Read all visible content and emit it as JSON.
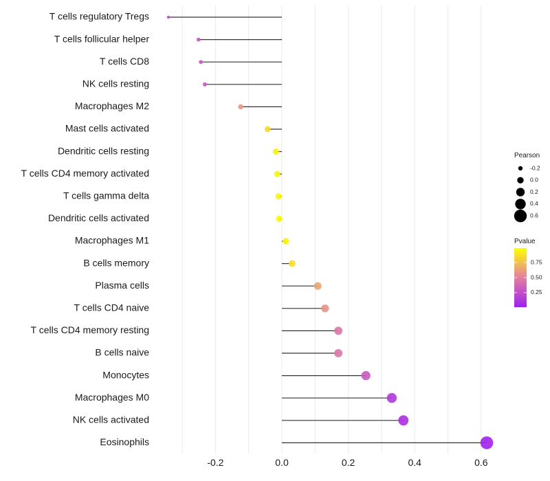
{
  "chart_data": {
    "type": "lollipop",
    "title": "",
    "xlabel": "",
    "ylabel": "",
    "xlim": [
      -0.36,
      0.64
    ],
    "x_ticks": [
      -0.2,
      0.0,
      0.2,
      0.4,
      0.6
    ],
    "x_tick_labels": [
      "-0.2",
      "0.0",
      "0.2",
      "0.4",
      "0.6"
    ],
    "grid": true,
    "categories": [
      "T cells regulatory  Tregs",
      "T cells follicular helper",
      "T cells CD8",
      "NK cells resting",
      "Macrophages M2",
      "Mast cells activated",
      "Dendritic cells resting",
      "T cells CD4 memory activated",
      "T cells gamma delta",
      "Dendritic cells activated",
      "Macrophages M1",
      "B cells memory",
      "Plasma cells",
      "T cells CD4 naive",
      "T cells CD4 memory resting",
      "B cells naive",
      "Monocytes",
      "Macrophages M0",
      "NK cells activated",
      "Eosinophils"
    ],
    "pearson": [
      -0.342,
      -0.251,
      -0.244,
      -0.232,
      -0.124,
      -0.043,
      -0.018,
      -0.014,
      -0.01,
      -0.008,
      0.012,
      0.031,
      0.108,
      0.13,
      0.17,
      0.17,
      0.253,
      0.331,
      0.366,
      0.617
    ],
    "pvalue": [
      0.2,
      0.28,
      0.28,
      0.28,
      0.6,
      0.85,
      0.95,
      0.97,
      0.97,
      0.97,
      0.95,
      0.88,
      0.65,
      0.58,
      0.45,
      0.45,
      0.3,
      0.12,
      0.08,
      0.01
    ],
    "legend": {
      "placement": "right",
      "size": {
        "title": "Pearson",
        "labels": [
          "-0.2",
          "0.0",
          "0.2",
          "0.4",
          "0.6"
        ],
        "values": [
          -0.2,
          0.0,
          0.2,
          0.4,
          0.6
        ]
      },
      "color": {
        "title": "Pvalue",
        "labels": [
          "0.75",
          "0.50",
          "0.25"
        ],
        "values": [
          0.75,
          0.5,
          0.25
        ],
        "low_color": "#a020f0",
        "mid_color": "#e37fa0",
        "high_color": "#ffff00"
      }
    }
  }
}
